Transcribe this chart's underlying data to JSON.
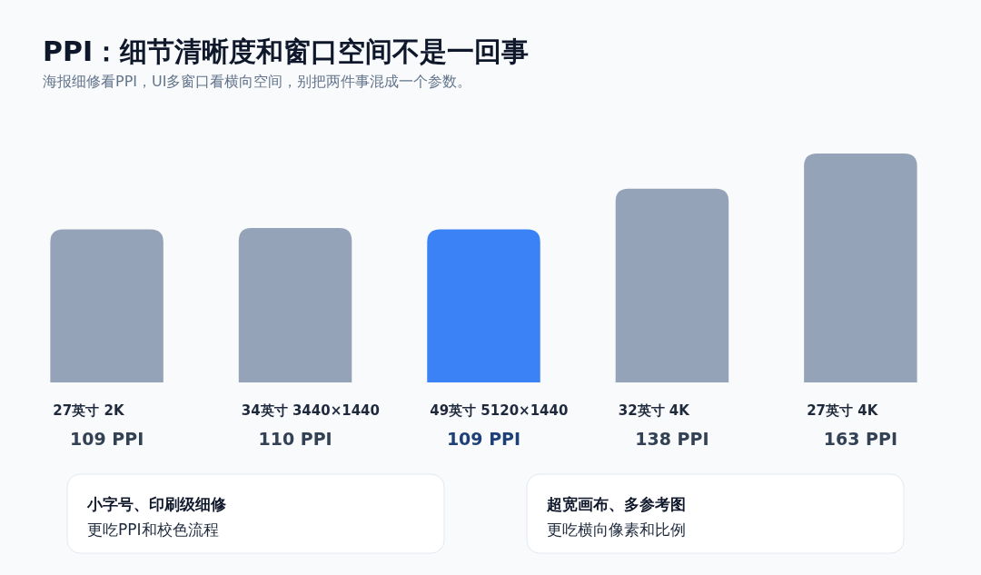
{
  "chart_data": {
    "type": "bar",
    "title": "PPI：细节清晰度和窗口空间不是一回事",
    "subtitle": "海报细修看PPI，UI多窗口看横向空间，别把两件事混成一个参数。",
    "categories": [
      "27英寸 2K",
      "34英寸 3440×1440",
      "49英寸 5120×1440",
      "32英寸 4K",
      "27英寸 4K"
    ],
    "values": [
      109,
      110,
      109,
      138,
      163
    ],
    "colors": [
      "#94a3b8",
      "#94a3b8",
      "#3b82f6",
      "#94a3b8",
      "#94a3b8"
    ],
    "value_labels": [
      "109 PPI",
      "110 PPI",
      "109 PPI",
      "138 PPI",
      "163 PPI"
    ],
    "annotations": [
      "小字号、印刷级细修",
      "更吃PPI和校色流程",
      "超宽画布、多参考图",
      "更吃横向像素和比例"
    ]
  }
}
